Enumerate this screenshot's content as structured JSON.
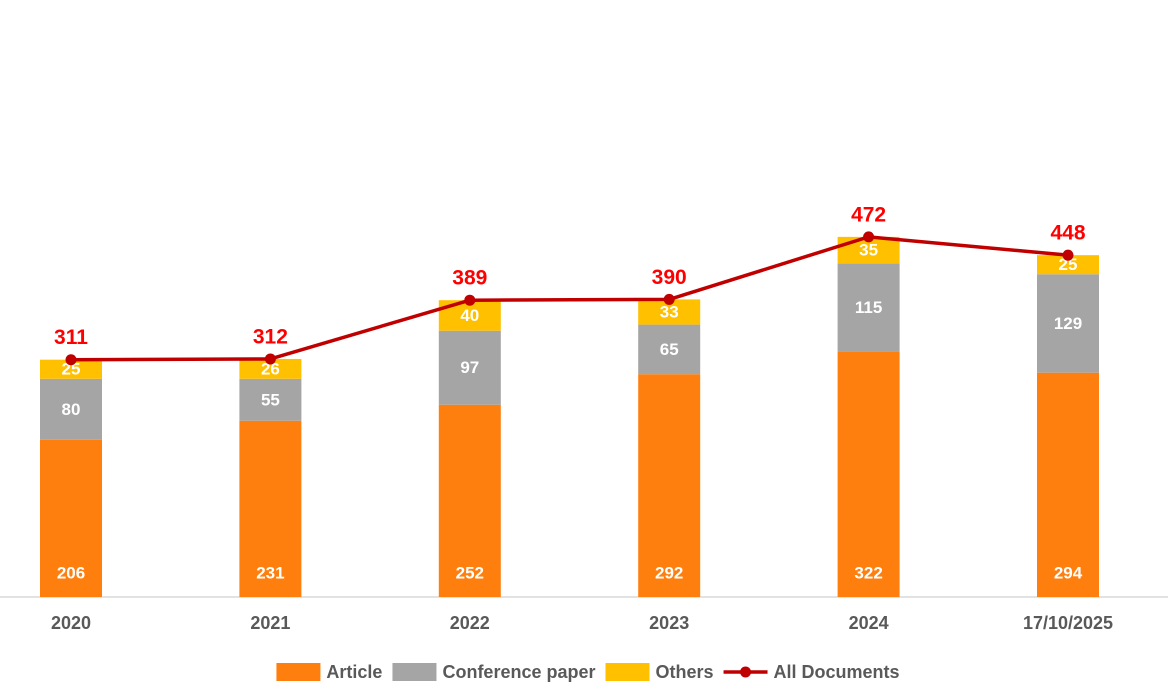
{
  "chart_data": {
    "type": "bar",
    "stacked": true,
    "title": "",
    "xlabel": "",
    "ylabel": "",
    "ylim": [
      0,
      500
    ],
    "grid": false,
    "legend_position": "bottom",
    "categories": [
      "2020",
      "2021",
      "2022",
      "2023",
      "2024",
      "17/10/2025"
    ],
    "series": [
      {
        "name": "Article",
        "color": "#FF7F0E",
        "values": [
          206,
          231,
          252,
          292,
          322,
          294
        ]
      },
      {
        "name": "Conference paper",
        "color": "#A5A5A5",
        "values": [
          80,
          55,
          97,
          65,
          115,
          129
        ]
      },
      {
        "name": "Others",
        "color": "#FFC000",
        "values": [
          25,
          26,
          40,
          33,
          35,
          25
        ]
      }
    ],
    "line_series": {
      "name": "All Documents",
      "color": "#C00000",
      "label_color": "#FF0000",
      "values": [
        311,
        312,
        389,
        390,
        472,
        448
      ]
    }
  }
}
